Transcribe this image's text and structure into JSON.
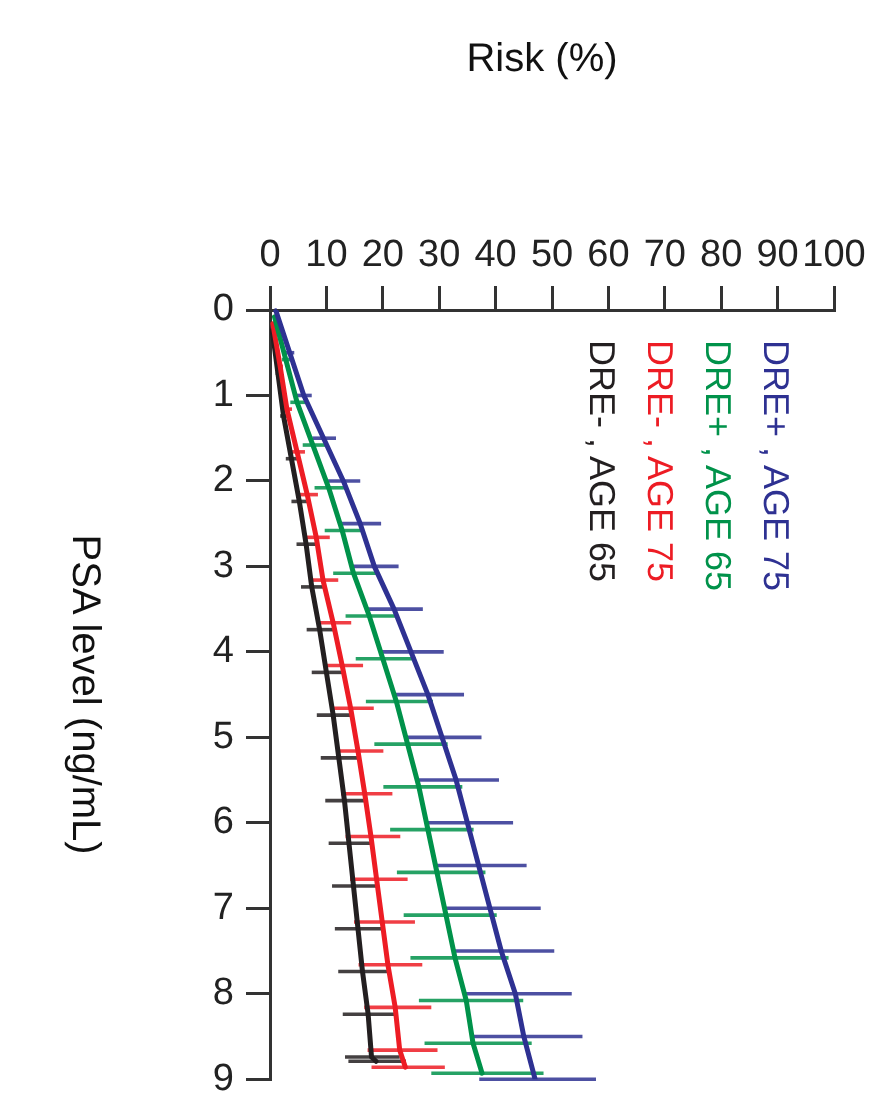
{
  "chart_data": {
    "type": "line",
    "xlabel": "Risk (%)",
    "ylabel": "PSA level (ng/mL)",
    "xlim": [
      0,
      100
    ],
    "xticks": [
      0,
      10,
      20,
      30,
      40,
      50,
      60,
      70,
      80,
      90,
      100
    ],
    "ylim": [
      9,
      0
    ],
    "yticks": [
      0,
      1,
      2,
      3,
      4,
      5,
      6,
      7,
      8,
      9
    ],
    "grid": false,
    "legend": "top right",
    "marker": "none",
    "line_style": "solid",
    "series": [
      {
        "name": "DRE+ , AGE 75",
        "color": "#2e3192",
        "values": [
          0,
          0.5,
          1,
          1.5,
          2,
          2.5,
          3,
          3.5,
          4,
          4.5,
          5,
          5.5,
          6,
          6.5,
          7,
          7.5,
          8,
          8.5,
          9
        ],
        "x": [
          1,
          3.5,
          6,
          9.5,
          13,
          16,
          18.5,
          22,
          25,
          28,
          30.5,
          33,
          35,
          37,
          39,
          41,
          43.5,
          45,
          47
        ],
        "xerrors": [
          [
            0.8,
            1.2
          ],
          [
            2.8,
            4.3
          ],
          [
            4.7,
            7.4
          ],
          [
            7.5,
            11.7
          ],
          [
            10.3,
            16
          ],
          [
            12.6,
            19.7
          ],
          [
            14.6,
            22.8
          ],
          [
            17.4,
            27.1
          ],
          [
            19.8,
            30.8
          ],
          [
            22.1,
            34.4
          ],
          [
            24.1,
            37.5
          ],
          [
            26.1,
            40.6
          ],
          [
            27.7,
            43.1
          ],
          [
            29.2,
            45.5
          ],
          [
            30.8,
            48
          ],
          [
            32.4,
            50.4
          ],
          [
            34.4,
            53.5
          ],
          [
            35.6,
            55.4
          ],
          [
            37.1,
            57.8
          ]
        ]
      },
      {
        "name": "DRE+ , AGE 65",
        "color": "#00924a",
        "values": [
          0.08,
          0.58,
          1.08,
          1.58,
          2.08,
          2.58,
          3.08,
          3.58,
          4.08,
          4.58,
          5.08,
          5.58,
          6.08,
          6.58,
          7.08,
          7.58,
          8.08,
          8.58,
          8.93
        ],
        "x": [
          0.8,
          2.8,
          4.8,
          7.6,
          10.4,
          12.8,
          14.8,
          17.6,
          20,
          22.4,
          24.4,
          26.4,
          28,
          29.6,
          31.2,
          32.8,
          34.8,
          36,
          37.6
        ],
        "xerrors": [
          [
            0.6,
            1
          ],
          [
            2.1,
            3.6
          ],
          [
            3.6,
            6.2
          ],
          [
            5.8,
            9.8
          ],
          [
            7.9,
            13.4
          ],
          [
            9.7,
            16.5
          ],
          [
            11.2,
            19.1
          ],
          [
            13.4,
            22.7
          ],
          [
            15.2,
            25.8
          ],
          [
            17,
            28.9
          ],
          [
            18.5,
            31.5
          ],
          [
            20.1,
            34.1
          ],
          [
            21.3,
            36.1
          ],
          [
            22.5,
            38.2
          ],
          [
            23.7,
            40.2
          ],
          [
            24.9,
            42.3
          ],
          [
            26.4,
            44.9
          ],
          [
            27.4,
            46.4
          ],
          [
            28.6,
            48.5
          ]
        ]
      },
      {
        "name": "DRE- , AGE 75",
        "color": "#ed1c24",
        "values": [
          0.16,
          0.66,
          1.16,
          1.66,
          2.16,
          2.66,
          3.16,
          3.66,
          4.16,
          4.66,
          5.16,
          5.66,
          6.16,
          6.66,
          7.16,
          7.66,
          8.16,
          8.66,
          8.86
        ],
        "x": [
          0.5,
          1.8,
          3,
          4.8,
          6.6,
          8.2,
          9.4,
          11.2,
          12.8,
          14.3,
          15.6,
          16.8,
          17.9,
          18.9,
          19.9,
          20.9,
          22.2,
          23,
          24
        ],
        "xerrors": [
          null,
          [
            1.4,
            2.3
          ],
          [
            2.3,
            3.9
          ],
          [
            3.6,
            6.2
          ],
          [
            5,
            8.5
          ],
          [
            6.2,
            10.6
          ],
          [
            7.1,
            12.1
          ],
          [
            8.4,
            14.4
          ],
          [
            9.6,
            16.5
          ],
          [
            10.7,
            18.4
          ],
          [
            11.7,
            20.1
          ],
          [
            12.6,
            21.7
          ],
          [
            13.4,
            23.1
          ],
          [
            14.2,
            24.4
          ],
          [
            14.9,
            25.7
          ],
          [
            15.7,
            27
          ],
          [
            16.7,
            28.6
          ],
          [
            17.3,
            29.7
          ],
          [
            18,
            31
          ]
        ]
      },
      {
        "name": "DRE- , AGE 65",
        "color": "#231f20",
        "values": [
          0.24,
          0.74,
          1.24,
          1.74,
          2.24,
          2.74,
          3.24,
          3.74,
          4.24,
          4.74,
          5.24,
          5.74,
          6.24,
          6.74,
          7.24,
          7.74,
          8.24,
          8.74,
          8.79
        ],
        "x": [
          0.4,
          1.4,
          2.4,
          3.8,
          5.2,
          6.4,
          7.4,
          8.8,
          10,
          11.2,
          12.2,
          13.2,
          14,
          14.8,
          15.6,
          16.4,
          17.4,
          18,
          18.8
        ],
        "xerrors": [
          null,
          [
            1,
            1.8
          ],
          [
            1.8,
            3.1
          ],
          [
            2.8,
            4.9
          ],
          [
            3.8,
            6.7
          ],
          [
            4.7,
            8.2
          ],
          [
            5.5,
            9.5
          ],
          [
            6.5,
            11.3
          ],
          [
            7.4,
            12.8
          ],
          [
            8.3,
            14.3
          ],
          [
            9,
            15.6
          ],
          [
            9.8,
            16.9
          ],
          [
            10.4,
            17.9
          ],
          [
            11,
            18.9
          ],
          [
            11.5,
            20
          ],
          [
            12.1,
            21
          ],
          [
            12.9,
            22.3
          ],
          [
            13.3,
            23
          ],
          [
            13.9,
            24.1
          ]
        ]
      }
    ]
  }
}
